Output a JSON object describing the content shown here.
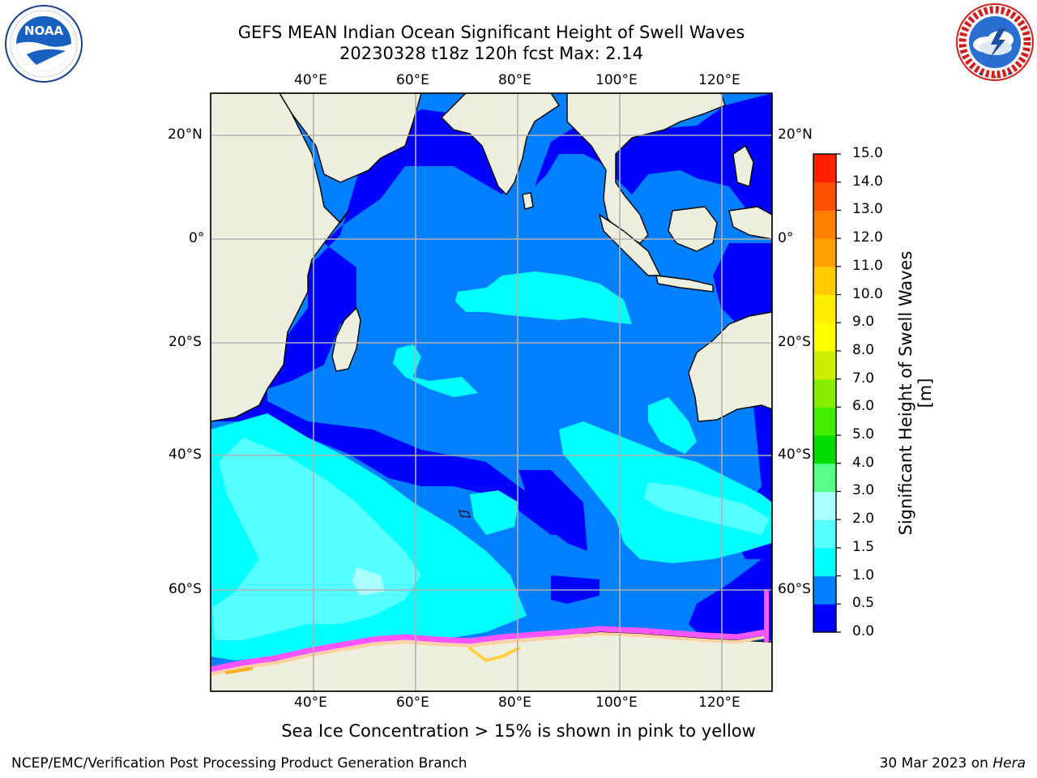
{
  "header": {
    "title_line1": "GEFS MEAN Indian Ocean Significant Height of Swell Waves",
    "title_line2": "20230328 t18z 120h fcst   Max: 2.14"
  },
  "logos": {
    "left": {
      "icon": "noaa-logo",
      "text": "NOAA",
      "ring_text": "NATIONAL OCEANIC AND ATMOSPHERIC ADMINISTRATION · U.S. DEPARTMENT OF COMMERCE"
    },
    "right": {
      "icon": "nws-logo",
      "ring_text": "NATIONAL WEATHER SERVICE"
    }
  },
  "map": {
    "lon_labels": [
      "40°E",
      "60°E",
      "80°E",
      "100°E",
      "120°E"
    ],
    "lat_labels_left": [
      "20°N",
      "0°",
      "20°S",
      "40°S",
      "60°S"
    ],
    "lat_labels_right": [
      "20°N",
      "0°",
      "20°S",
      "40°S",
      "60°S"
    ],
    "colors": {
      "ocean_0_05": "#0000ff",
      "ocean_05_10": "#0080ff",
      "ocean_10_15": "#00ffff",
      "ocean_15_20": "#55ffff",
      "land": "#efefdf",
      "grid": "#b0b0b0"
    }
  },
  "colorbar": {
    "title": "Significant Height of Swell Waves [m]",
    "ticks": [
      "0.0",
      "0.5",
      "1.0",
      "1.5",
      "2.0",
      "3.0",
      "4.0",
      "5.0",
      "6.0",
      "7.0",
      "8.0",
      "9.0",
      "10.0",
      "11.0",
      "12.0",
      "13.0",
      "14.0",
      "15.0"
    ],
    "colors": [
      "#0000ff",
      "#0080ff",
      "#00ffff",
      "#55ffff",
      "#aaffff",
      "#55ff88",
      "#00dd00",
      "#44ee00",
      "#88ee00",
      "#ccee00",
      "#ffff00",
      "#ffee00",
      "#ffcc00",
      "#ffa000",
      "#ff8000",
      "#ff5000",
      "#ff2000"
    ]
  },
  "caption": "Sea Ice Concentration > 15% is shown in pink to yellow",
  "footer": {
    "left": "NCEP/EMC/Verification Post Processing Product Generation Branch",
    "right_date": "30 Mar 2023 on ",
    "right_host": "Hera"
  }
}
